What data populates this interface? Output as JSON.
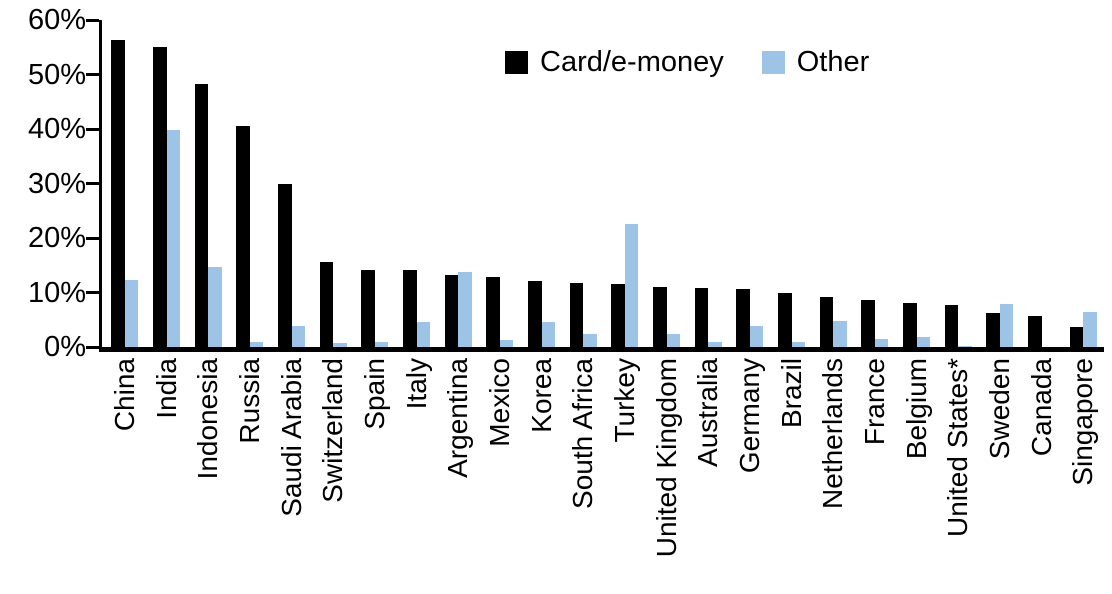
{
  "page": {
    "background": "#ffffff",
    "text_color": "#000000"
  },
  "chart_data": {
    "type": "bar",
    "title": "",
    "xlabel": "",
    "ylabel": "",
    "categories": [
      "China",
      "India",
      "Indonesia",
      "Russia",
      "Saudi Arabia",
      "Switzerland",
      "Spain",
      "Italy",
      "Argentina",
      "Mexico",
      "Korea",
      "South Africa",
      "Turkey",
      "United Kingdom",
      "Australia",
      "Germany",
      "Brazil",
      "Netherlands",
      "France",
      "Belgium",
      "United States*",
      "Sweden",
      "Canada",
      "Singapore"
    ],
    "series": [
      {
        "name": "Card/e-money",
        "color": "#000000",
        "values": [
          56.3,
          55.0,
          48.3,
          40.6,
          29.9,
          15.6,
          14.1,
          14.1,
          13.3,
          12.9,
          12.2,
          11.7,
          11.6,
          11.0,
          10.8,
          10.6,
          9.9,
          9.2,
          8.6,
          8.1,
          7.7,
          6.2,
          5.7,
          3.7
        ]
      },
      {
        "name": "Other",
        "color": "#9DC3E6",
        "values": [
          12.3,
          39.8,
          14.6,
          0.9,
          3.8,
          0.7,
          0.9,
          4.5,
          13.8,
          1.2,
          4.6,
          2.3,
          22.6,
          2.3,
          0.9,
          3.9,
          1.0,
          4.8,
          1.5,
          1.9,
          0.1,
          7.9,
          0.0,
          6.4
        ]
      }
    ],
    "ylim": [
      0,
      60
    ],
    "yticks": [
      0,
      10,
      20,
      30,
      40,
      50,
      60
    ],
    "ytick_labels": [
      "0%",
      "10%",
      "20%",
      "30%",
      "40%",
      "50%",
      "60%"
    ],
    "grid": "off",
    "legend_position": "top-center"
  }
}
